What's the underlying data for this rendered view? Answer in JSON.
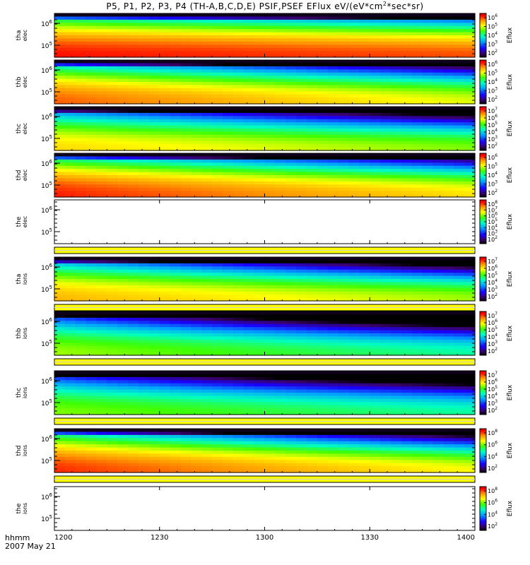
{
  "title": {
    "prefix": "P5, P1, P2, P3, P4 (TH-A,B,C,D,E) PSIF,PSEF EFlux eV/(eV*cm",
    "exp1": "2",
    "mid": "*sec*sr)"
  },
  "footer": {
    "line1": "hhmm",
    "line2": "2007 May 21"
  },
  "chart_data": {
    "type": "heatmap",
    "x_ticks": [
      "1200",
      "1230",
      "1300",
      "1330",
      "1400"
    ],
    "x_range": [
      "1200",
      "1400"
    ],
    "colorbar_label": "Eflux",
    "panels": [
      {
        "id": "tha-elec",
        "probe": "tha",
        "species": "elec",
        "has_data": true,
        "has_separator": false,
        "y_ticks": [
          "10^6",
          "10^5"
        ],
        "cbar_ticks": [
          "10^6",
          "10^5",
          "10^4",
          "10^3",
          "10^2"
        ]
      },
      {
        "id": "thb-elec",
        "probe": "thb",
        "species": "elec",
        "has_data": true,
        "has_separator": false,
        "y_ticks": [
          "10^6",
          "10^5"
        ],
        "cbar_ticks": [
          "10^6",
          "10^5",
          "10^4",
          "10^3",
          "10^2"
        ]
      },
      {
        "id": "thc-elec",
        "probe": "thc",
        "species": "elec",
        "has_data": true,
        "has_separator": false,
        "y_ticks": [
          "10^6",
          "10^5"
        ],
        "cbar_ticks": [
          "10^7",
          "10^6",
          "10^5",
          "10^4",
          "10^3",
          "10^2"
        ]
      },
      {
        "id": "thd-elec",
        "probe": "thd",
        "species": "elec",
        "has_data": true,
        "has_separator": false,
        "y_ticks": [
          "10^6",
          "10^5"
        ],
        "cbar_ticks": [
          "10^6",
          "10^5",
          "10^4",
          "10^3",
          "10^2"
        ]
      },
      {
        "id": "the-elec",
        "probe": "the",
        "species": "elec",
        "has_data": false,
        "has_separator": true,
        "y_ticks": [
          "10^6",
          "10^5"
        ],
        "cbar_ticks": [
          "10^8",
          "10^7",
          "10^6",
          "10^5",
          "10^4",
          "10^3",
          "10^2"
        ]
      },
      {
        "id": "tha-ions",
        "probe": "tha",
        "species": "ions",
        "has_data": true,
        "has_separator": true,
        "y_ticks": [
          "10^6",
          "10^5"
        ],
        "cbar_ticks": [
          "10^7",
          "10^6",
          "10^5",
          "10^4",
          "10^3",
          "10^2"
        ]
      },
      {
        "id": "thb-ions",
        "probe": "thb",
        "species": "ions",
        "has_data": true,
        "has_separator": true,
        "y_ticks": [
          "10^6",
          "10^5"
        ],
        "cbar_ticks": [
          "10^7",
          "10^6",
          "10^5",
          "10^4",
          "10^3",
          "10^2"
        ]
      },
      {
        "id": "thc-ions",
        "probe": "thc",
        "species": "ions",
        "has_data": true,
        "has_separator": true,
        "y_ticks": [
          "10^6",
          "10^5"
        ],
        "cbar_ticks": [
          "10^7",
          "10^6",
          "10^5",
          "10^4",
          "10^3",
          "10^2"
        ]
      },
      {
        "id": "thd-ions",
        "probe": "thd",
        "species": "ions",
        "has_data": true,
        "has_separator": true,
        "y_ticks": [
          "10^6",
          "10^5"
        ],
        "cbar_ticks": [
          "10^8",
          "10^6",
          "10^4",
          "10^2"
        ]
      },
      {
        "id": "the-ions",
        "probe": "the",
        "species": "ions",
        "has_data": false,
        "has_separator": false,
        "y_ticks": [
          "10^6",
          "10^5"
        ],
        "cbar_ticks": [
          "10^8",
          "10^6",
          "10^4",
          "10^2"
        ]
      }
    ]
  }
}
